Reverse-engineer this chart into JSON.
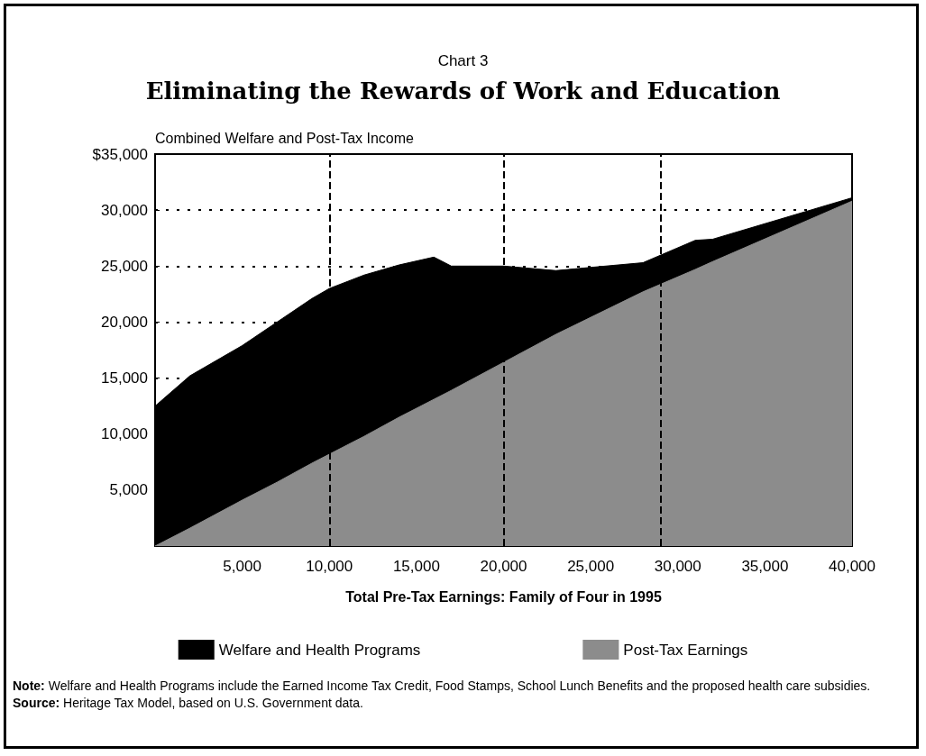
{
  "chart_data": {
    "type": "area",
    "stacked": true,
    "subtitle": "Chart 3",
    "title": "Eliminating the Rewards of Work and Education",
    "ylabel": "Combined Welfare and Post-Tax Income",
    "xlabel": "Total Pre-Tax Earnings: Family of Four in 1995",
    "x": [
      0,
      2000,
      5000,
      7000,
      9000,
      10000,
      12000,
      14000,
      16000,
      17000,
      20000,
      23000,
      28000,
      31000,
      32000,
      40000
    ],
    "series": [
      {
        "name": "Post-Tax Earnings",
        "color": "#8c8c8c",
        "values": [
          0,
          1600,
          4100,
          5700,
          7400,
          8200,
          9800,
          11500,
          13100,
          13900,
          16400,
          18900,
          22700,
          24700,
          25400,
          30800
        ]
      },
      {
        "name": "Welfare and Health Programs",
        "color": "#000000",
        "values": [
          12500,
          13600,
          13800,
          14300,
          14700,
          14800,
          14400,
          13600,
          12700,
          11100,
          8600,
          5700,
          2600,
          2600,
          2000,
          300
        ]
      }
    ],
    "xlim": [
      0,
      40000
    ],
    "xticks": [
      {
        "value": 5000,
        "label": "5,000"
      },
      {
        "value": 10000,
        "label": "10,000"
      },
      {
        "value": 15000,
        "label": "15,000"
      },
      {
        "value": 20000,
        "label": "20,000"
      },
      {
        "value": 25000,
        "label": "25,000"
      },
      {
        "value": 30000,
        "label": "30,000"
      },
      {
        "value": 35000,
        "label": "35,000"
      },
      {
        "value": 40000,
        "label": "40,000"
      }
    ],
    "ylim": [
      0,
      35000
    ],
    "yticks": [
      {
        "value": 5000,
        "label": "5,000"
      },
      {
        "value": 10000,
        "label": "10,000"
      },
      {
        "value": 15000,
        "label": "15,000"
      },
      {
        "value": 20000,
        "label": "20,000"
      },
      {
        "value": 25000,
        "label": "25,000"
      },
      {
        "value": 30000,
        "label": "30,000"
      },
      {
        "value": 35000,
        "label": "$35,000"
      }
    ],
    "grid": "y",
    "ref_lines": [
      {
        "axis": "x",
        "value": 10000,
        "line_style": "dashed"
      },
      {
        "axis": "x",
        "value": 20000,
        "line_style": "dashed"
      },
      {
        "axis": "x",
        "value": 29000,
        "line_style": "dashed"
      }
    ],
    "legend": "bottom",
    "annotations": [
      "Note: Welfare and Health Programs include the Earned Income Tax Credit, Food Stamps, School Lunch Benefits and the proposed health care subsidies.",
      "Source: Heritage Tax Model, based on U.S. Government data."
    ]
  }
}
